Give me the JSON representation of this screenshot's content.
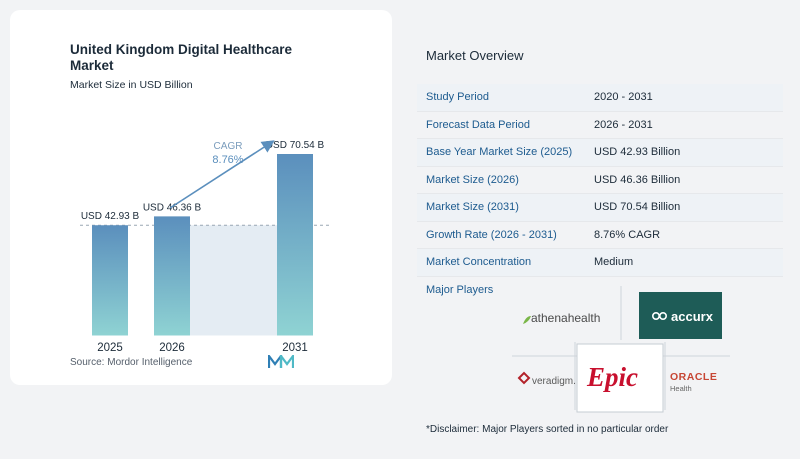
{
  "chart": {
    "title": "United Kingdom Digital Healthcare Market",
    "subtitle": "Market Size in USD Billion",
    "source": "Source: Mordor Intelligence",
    "cagr_label": "CAGR",
    "cagr_value": "8.76%"
  },
  "chart_data": {
    "type": "bar",
    "title": "United Kingdom Digital Healthcare Market",
    "subtitle": "Market Size in USD Billion",
    "categories": [
      "2025",
      "2026",
      "2031"
    ],
    "values": [
      42.93,
      46.36,
      70.54
    ],
    "data_labels": [
      "USD 42.93 B",
      "USD 46.36 B",
      "USD 70.54 B"
    ],
    "annotation": "CAGR 8.76%",
    "ylim": [
      0,
      80
    ],
    "grid": false,
    "colors": {
      "bar_top": "#5b8fbd",
      "bar_bottom": "#8fd3d3",
      "band": "#e4ecf3",
      "arrow": "#5b8fbd"
    }
  },
  "overview": {
    "title": "Market Overview",
    "rows": [
      {
        "label": "Study Period",
        "value": "2020 - 2031"
      },
      {
        "label": "Forecast Data Period",
        "value": "2026 - 2031"
      },
      {
        "label": "Base Year Market Size (2025)",
        "value": "USD 42.93 Billion"
      },
      {
        "label": "Market Size (2026)",
        "value": "USD 46.36 Billion"
      },
      {
        "label": "Market Size (2031)",
        "value": "USD 70.54 Billion"
      },
      {
        "label": "Growth Rate (2026 - 2031)",
        "value": "8.76% CAGR"
      },
      {
        "label": "Market Concentration",
        "value": "Medium"
      }
    ],
    "players_title": "Major Players",
    "players": {
      "athena": "athenahealth",
      "accurx": "accurx",
      "veradigm": "veradigm.",
      "epic": "Epic",
      "oracle": "ORACLE",
      "oracle_sub": "Health"
    },
    "disclaimer": "*Disclaimer: Major Players sorted in no particular order"
  }
}
